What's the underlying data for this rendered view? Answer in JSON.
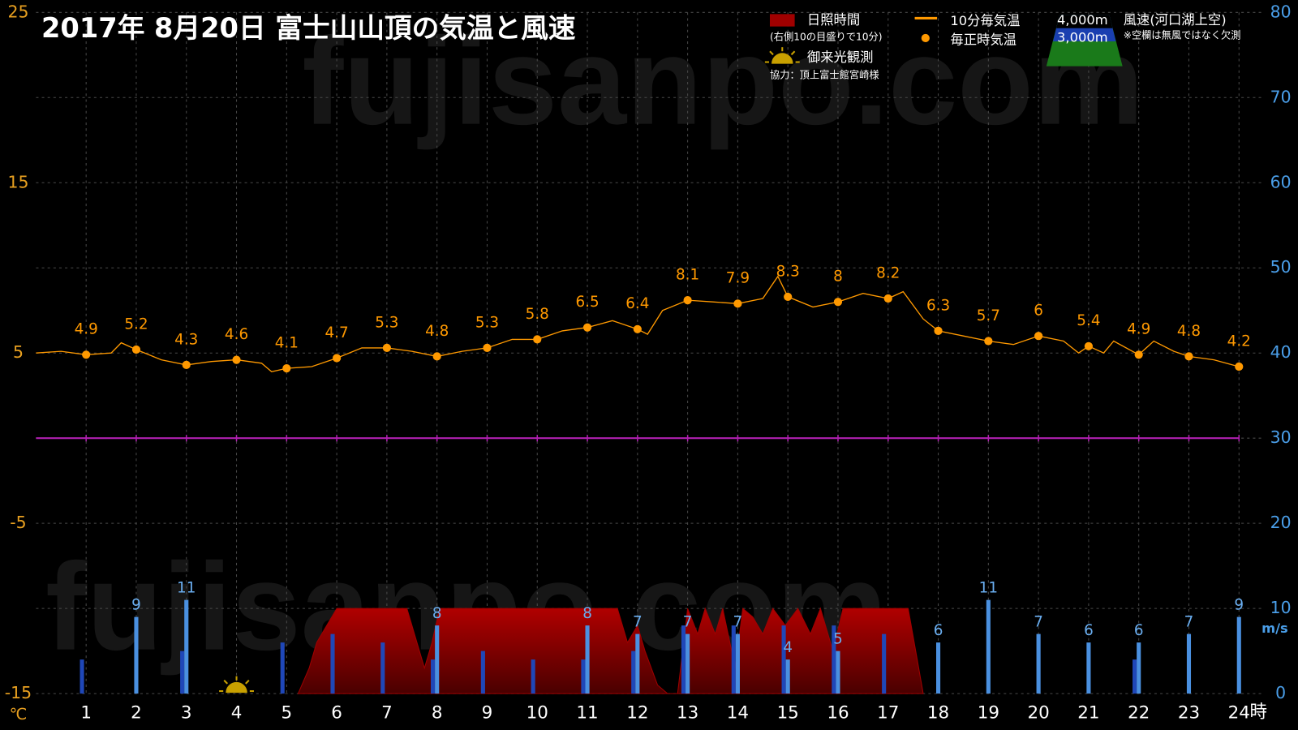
{
  "chart_data": {
    "type": "combo",
    "title": "2017年  8月20日   富士山山頂の気温と風速",
    "watermark": "fujisanpo.com",
    "xlim": [
      0,
      24.5
    ],
    "xticks": [
      1,
      2,
      3,
      4,
      5,
      6,
      7,
      8,
      9,
      10,
      11,
      12,
      13,
      14,
      15,
      16,
      17,
      18,
      19,
      20,
      21,
      22,
      23,
      24
    ],
    "x_unit": "時",
    "ylim": [
      -15,
      25
    ],
    "yticks": [
      -15,
      -5,
      5,
      15,
      25
    ],
    "y_unit": "℃",
    "y2lim": [
      0,
      80
    ],
    "y2ticks": [
      0,
      10,
      20,
      30,
      40,
      50,
      60,
      70,
      80
    ],
    "y2_unit": "m/s",
    "grid": true,
    "reference_line": {
      "value": 0,
      "color": "#b020b0"
    },
    "series": [
      {
        "name": "日照時間",
        "note": "(右側10の目盛りで10分)",
        "type": "area",
        "axis": "y2",
        "color": "#a00000",
        "x": [
          5.23,
          5.45,
          5.6,
          6.0,
          7.4,
          7.6,
          7.75,
          7.9,
          8.05,
          11.6,
          11.8,
          12.0,
          12.15,
          12.4,
          12.6,
          12.8,
          13.0,
          13.2,
          13.35,
          13.55,
          13.7,
          13.95,
          14.1,
          14.3,
          14.5,
          14.7,
          14.95,
          15.2,
          15.45,
          15.65,
          15.9,
          16.1,
          17.4,
          17.7
        ],
        "values": [
          0,
          3,
          6,
          10,
          10,
          6,
          3,
          6,
          10,
          10,
          6,
          8,
          5,
          1,
          0,
          0,
          10,
          7,
          10,
          7,
          10,
          3,
          10,
          9,
          7,
          10,
          8,
          10,
          7,
          10,
          5,
          10,
          10,
          0
        ]
      },
      {
        "name": "10分毎気温",
        "type": "line",
        "color": "#ff9900",
        "x": [
          0,
          0.5,
          1,
          1.5,
          1.7,
          2,
          2.5,
          3,
          3.5,
          4,
          4.5,
          4.7,
          5,
          5.5,
          6,
          6.5,
          7,
          7.5,
          8,
          8.5,
          9,
          9.5,
          10,
          10.5,
          11,
          11.5,
          12,
          12.2,
          12.5,
          13,
          13.5,
          14,
          14.5,
          14.8,
          15,
          15.5,
          16,
          16.5,
          17,
          17.3,
          17.7,
          18,
          18.5,
          19,
          19.5,
          20,
          20.5,
          20.8,
          21,
          21.3,
          21.5,
          22,
          22.3,
          22.7,
          23,
          23.5,
          24
        ],
        "values": [
          5.0,
          5.1,
          4.9,
          5.0,
          5.6,
          5.2,
          4.6,
          4.3,
          4.5,
          4.6,
          4.4,
          3.9,
          4.1,
          4.2,
          4.7,
          5.3,
          5.3,
          5.1,
          4.8,
          5.1,
          5.3,
          5.8,
          5.8,
          6.3,
          6.5,
          6.9,
          6.4,
          6.1,
          7.5,
          8.1,
          8.0,
          7.9,
          8.2,
          9.5,
          8.3,
          7.7,
          8,
          8.5,
          8.2,
          8.6,
          7.0,
          6.3,
          6.0,
          5.7,
          5.5,
          6,
          5.7,
          5.0,
          5.4,
          5.0,
          5.7,
          4.9,
          5.7,
          5.1,
          4.8,
          4.6,
          4.2
        ]
      },
      {
        "name": "毎正時気温",
        "type": "scatter",
        "color": "#ff9900",
        "labels": true,
        "x": [
          1,
          2,
          3,
          4,
          5,
          6,
          7,
          8,
          9,
          10,
          11,
          12,
          13,
          14,
          15,
          16,
          17,
          18,
          19,
          20,
          21,
          22,
          23,
          24
        ],
        "values": [
          4.9,
          5.2,
          4.3,
          4.6,
          4.1,
          4.7,
          5.3,
          4.8,
          5.3,
          5.8,
          6.5,
          6.4,
          8.1,
          7.9,
          8.3,
          8,
          8.2,
          6.3,
          5.7,
          6,
          5.4,
          4.9,
          4.8,
          4.2
        ]
      },
      {
        "name": "3,000m",
        "type": "bar",
        "axis": "y2",
        "color": "#1f47b8",
        "labels": false,
        "x": [
          1,
          2,
          3,
          4,
          5,
          6,
          7,
          8,
          9,
          10,
          11,
          12,
          13,
          14,
          15,
          16,
          17,
          18,
          19,
          20,
          21,
          22,
          23,
          24
        ],
        "values": [
          4,
          null,
          5,
          null,
          6,
          7,
          6,
          4,
          5,
          4,
          4,
          5,
          8,
          8,
          8,
          8,
          7,
          null,
          null,
          null,
          null,
          4,
          null,
          null
        ]
      },
      {
        "name": "4,000m",
        "type": "bar",
        "axis": "y2",
        "color": "#4a90e0",
        "labels": true,
        "x": [
          1,
          2,
          3,
          4,
          5,
          6,
          7,
          8,
          9,
          10,
          11,
          12,
          13,
          14,
          15,
          16,
          17,
          18,
          19,
          20,
          21,
          22,
          23,
          24
        ],
        "values": [
          null,
          9,
          11,
          null,
          null,
          null,
          null,
          8,
          null,
          null,
          8,
          7,
          7,
          7,
          4,
          5,
          null,
          6,
          11,
          7,
          6,
          6,
          7,
          9
        ]
      }
    ],
    "wind_title": "風速(河口湖上空)",
    "wind_note": "※空欄は無風ではなく欠測",
    "sunrise": {
      "label": "御来光観測",
      "x": 4
    },
    "credit": "協力：頂上富士館宮崎様"
  }
}
